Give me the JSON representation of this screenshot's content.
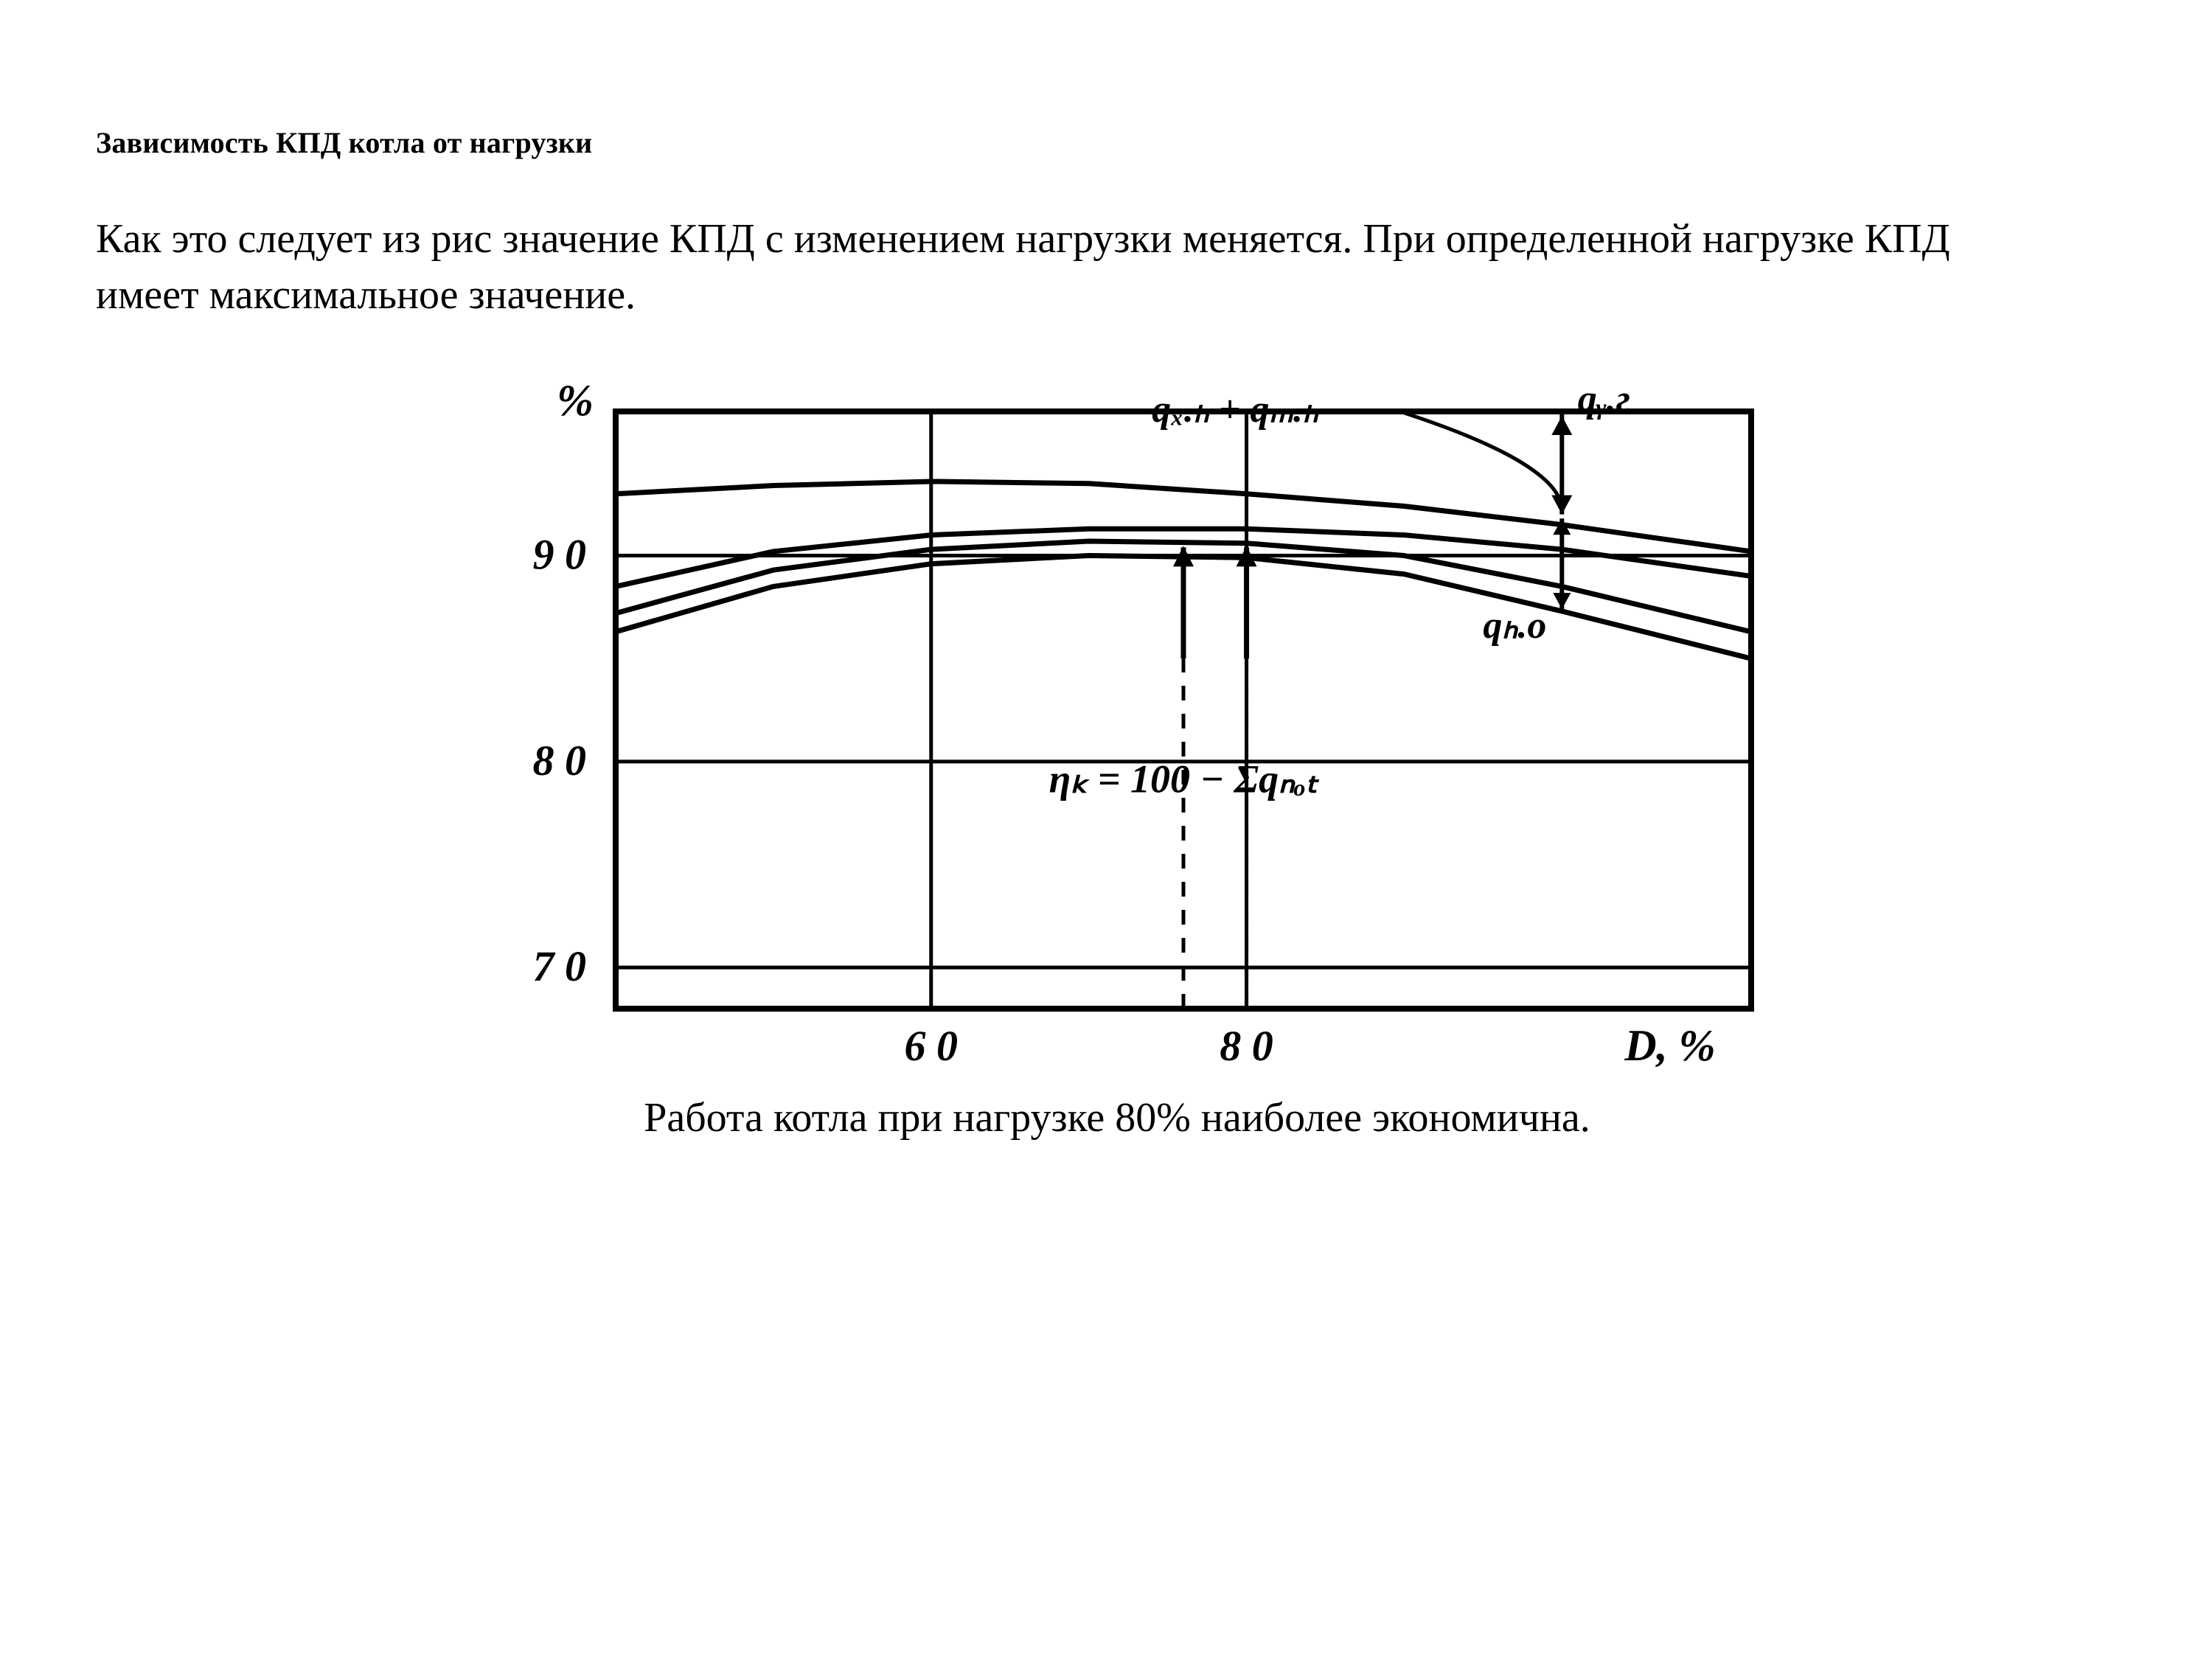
{
  "title": "Зависимость КПД котла от нагрузки",
  "paragraph": " Как это следует из рис  значение КПД с изменением нагрузки меняется. При определенной нагрузке КПД имеет максимальное значение.",
  "caption": "Работа котла при нагрузке 80%  наиболее экономична.",
  "chart": {
    "type": "line",
    "stroke_color": "#000000",
    "stroke_width_frame": 8,
    "stroke_width_grid": 5,
    "stroke_width_curve": 7,
    "background_color": "#ffffff",
    "y_axis_title": "%",
    "x_axis_title": "D, %",
    "x_ticks": [
      60,
      80
    ],
    "y_ticks": [
      70,
      80,
      90
    ],
    "xlim": [
      40,
      112
    ],
    "ylim": [
      68,
      97
    ],
    "curves": {
      "top": [
        [
          40,
          93.0
        ],
        [
          50,
          93.4
        ],
        [
          60,
          93.6
        ],
        [
          70,
          93.5
        ],
        [
          80,
          93.0
        ],
        [
          90,
          92.4
        ],
        [
          100,
          91.5
        ],
        [
          112,
          90.2
        ]
      ],
      "upper": [
        [
          40,
          88.5
        ],
        [
          50,
          90.2
        ],
        [
          60,
          91.0
        ],
        [
          70,
          91.3
        ],
        [
          80,
          91.3
        ],
        [
          90,
          91.0
        ],
        [
          100,
          90.3
        ],
        [
          112,
          89.0
        ]
      ],
      "mid": [
        [
          40,
          87.2
        ],
        [
          50,
          89.3
        ],
        [
          60,
          90.3
        ],
        [
          70,
          90.7
        ],
        [
          80,
          90.6
        ],
        [
          90,
          90.0
        ],
        [
          100,
          88.5
        ],
        [
          112,
          86.3
        ]
      ],
      "bottom": [
        [
          40,
          86.3
        ],
        [
          50,
          88.5
        ],
        [
          60,
          89.6
        ],
        [
          70,
          90.0
        ],
        [
          80,
          89.9
        ],
        [
          90,
          89.1
        ],
        [
          100,
          87.3
        ],
        [
          112,
          85.0
        ]
      ]
    },
    "annotations": {
      "q_xh_mh": "qₓ.ₕ + qₘ.ₕ",
      "q_ug": "qᵧ.г",
      "q_no": "qₕ.o",
      "formula": "ηₖ = 100 − Σqₙₒₜ"
    },
    "vertical_markers": [
      76,
      80
    ],
    "bracket_x": 100
  }
}
